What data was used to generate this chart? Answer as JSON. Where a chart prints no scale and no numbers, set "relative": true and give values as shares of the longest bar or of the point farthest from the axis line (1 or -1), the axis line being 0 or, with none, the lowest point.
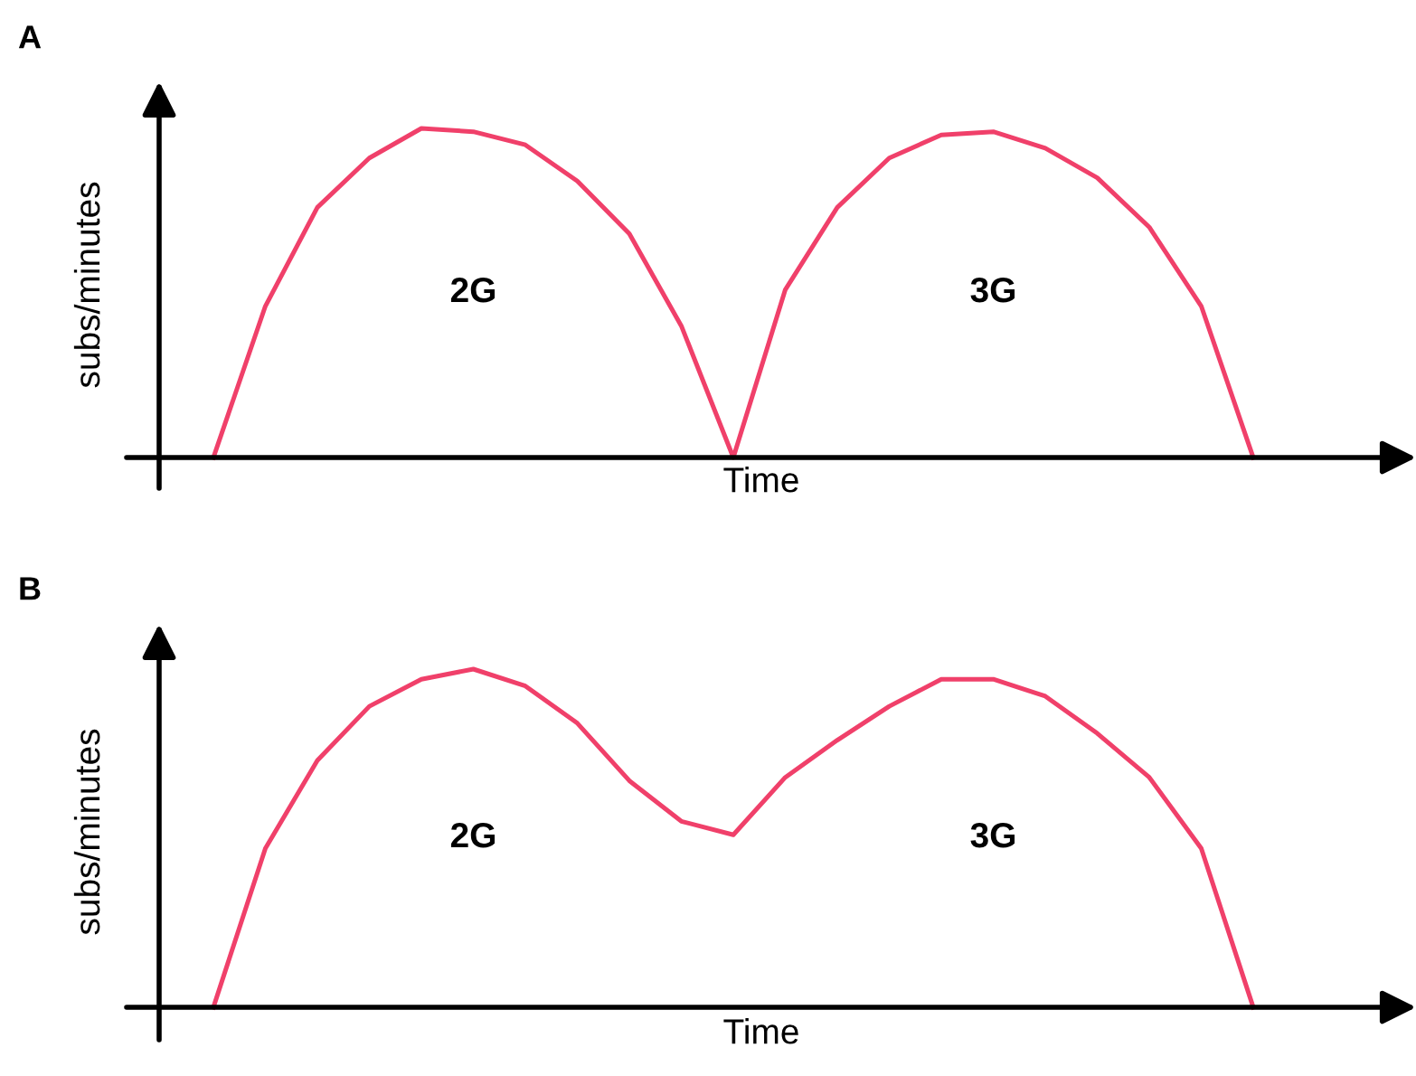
{
  "chart_data": [
    {
      "type": "line",
      "title": "A",
      "xlabel": "Time",
      "ylabel": "subs/minutes",
      "relative": true,
      "categories": [
        null,
        null,
        null,
        null,
        null,
        null,
        null,
        null,
        null,
        null,
        null,
        null,
        null,
        null,
        null,
        null,
        null,
        null,
        null,
        null,
        null
      ],
      "series": [
        {
          "color": "#f0406a",
          "values": [
            0,
            0.46,
            0.76,
            0.91,
            1.0,
            0.99,
            0.95,
            0.84,
            0.68,
            0.4,
            0,
            0.51,
            0.76,
            0.91,
            0.98,
            0.99,
            0.94,
            0.85,
            0.7,
            0.46,
            0
          ]
        }
      ],
      "annotations": [
        "2G",
        "3G"
      ]
    },
    {
      "type": "line",
      "title": "B",
      "xlabel": "Time",
      "ylabel": "subs/minutes",
      "relative": true,
      "categories": [
        null,
        null,
        null,
        null,
        null,
        null,
        null,
        null,
        null,
        null,
        null,
        null,
        null,
        null,
        null,
        null,
        null,
        null,
        null,
        null,
        null
      ],
      "series": [
        {
          "color": "#f0406a",
          "values": [
            0,
            0.47,
            0.73,
            0.89,
            0.97,
            1.0,
            0.95,
            0.84,
            0.67,
            0.55,
            0.51,
            0.68,
            0.79,
            0.89,
            0.97,
            0.97,
            0.92,
            0.81,
            0.68,
            0.47,
            0
          ]
        }
      ],
      "annotations": [
        "2G",
        "3G"
      ]
    }
  ]
}
